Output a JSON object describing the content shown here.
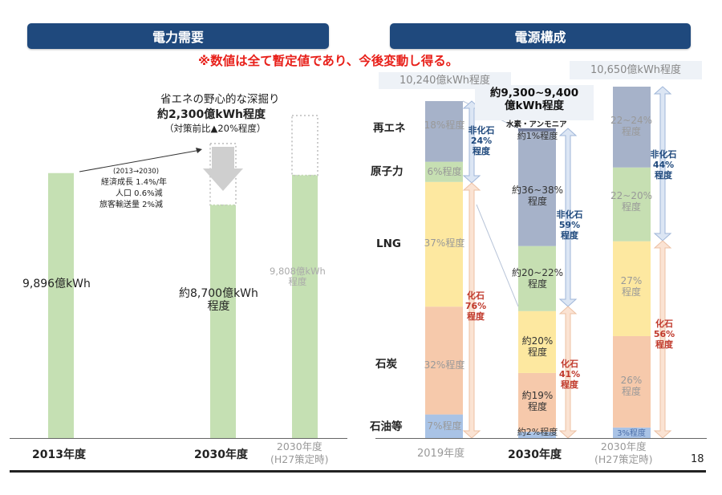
{
  "header": {
    "left_title": "電力需要",
    "right_title": "電源構成",
    "notice": "※数値は全て暫定値であり、今後変動し得る。"
  },
  "page_number": "18",
  "colors": {
    "banner": "#1f497d",
    "notice": "#e8201a",
    "renewable": "#a6b2c9",
    "nuclear": "#c6dfb2",
    "lng": "#fde8a0",
    "coal": "#f6c9ab",
    "oil": "#a9c3e6",
    "demand_bar": "#c5e0b3",
    "non_fossil_text": "#1f497d",
    "fossil_text": "#c0392b"
  },
  "chart_data": [
    {
      "type": "bar",
      "title": "電力需要",
      "unit": "億kWh",
      "categories": [
        "2013年度",
        "2030年度",
        "2030年度\n(H27策定時)"
      ],
      "values": [
        9896,
        8700,
        9808
      ],
      "pre_measure_values": [
        null,
        11000,
        12046
      ],
      "labels": [
        "9,896億kWh",
        "約8,700億kWh\n程度",
        "9,808億kWh\n程度"
      ],
      "ylim": [
        0,
        13000
      ],
      "annotations": {
        "savings_title": "省エネの野心的な深掘り",
        "savings_value": "約2,300億kWh程度",
        "savings_ratio": "（対策前比▲20%程度）",
        "assumptions_period": "(2013→2030)",
        "assumption_growth": "経済成長 1.4%/年",
        "assumption_population": "人口 0.6%減",
        "assumption_transport": "旅客輸送量 2%減"
      }
    },
    {
      "type": "bar",
      "stacked": true,
      "title": "電源構成",
      "categories": [
        "2019年度",
        "2030年度",
        "2030年度\n(H27策定時)"
      ],
      "totals": [
        "10,240億kWh程度",
        "約9,300~9,400\n億kWh程度",
        "10,650億kWh程度"
      ],
      "series": [
        {
          "name": "石油等",
          "values": [
            7,
            2,
            3
          ],
          "labels": [
            "7%程度",
            "約2%程度",
            "3%程度"
          ]
        },
        {
          "name": "石炭",
          "values": [
            32,
            19,
            26
          ],
          "labels": [
            "32%程度",
            "約19%\n程度",
            "26%\n程度"
          ]
        },
        {
          "name": "LNG",
          "values": [
            37,
            20,
            27
          ],
          "labels": [
            "37%程度",
            "約20%\n程度",
            "27%\n程度"
          ]
        },
        {
          "name": "原子力",
          "values": [
            6,
            21,
            21
          ],
          "labels": [
            "6%程度",
            "約20~22%\n程度",
            "22~20%\n程度"
          ]
        },
        {
          "name": "再エネ",
          "values": [
            18,
            37,
            23
          ],
          "labels": [
            "18%程度",
            "約36~38%\n程度",
            "22~24%\n程度"
          ]
        },
        {
          "name": "水素・アンモニア",
          "values": [
            0,
            1,
            0
          ],
          "labels": [
            "",
            "約1%程度",
            ""
          ]
        }
      ],
      "legend_labels": [
        "再エネ",
        "原子力",
        "LNG",
        "石炭",
        "石油等"
      ],
      "hydrogen_label": "水素・アンモニア",
      "non_fossil": [
        "非化石\n24%\n程度",
        "非化石\n59%\n程度",
        "非化石\n44%\n程度"
      ],
      "fossil": [
        "化石\n76%\n程度",
        "化石\n41%\n程度",
        "化石\n56%\n程度"
      ],
      "ylim": [
        0,
        100
      ]
    }
  ]
}
